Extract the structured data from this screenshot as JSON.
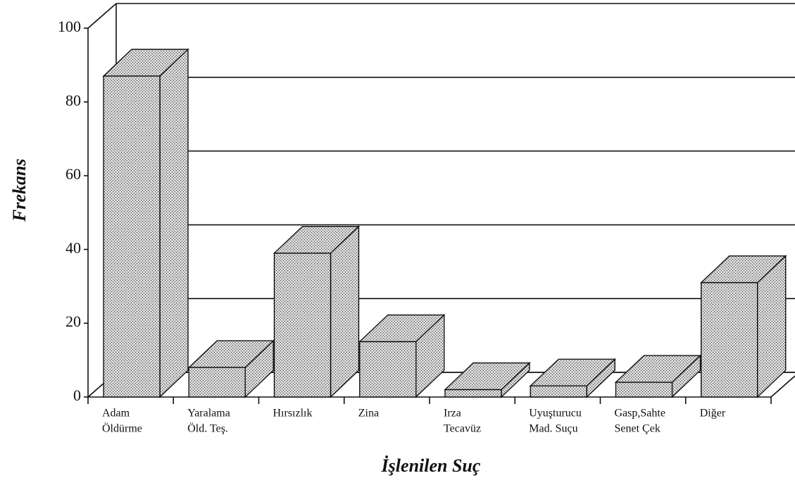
{
  "chart_data": {
    "type": "bar",
    "x_label": "İşlenilen Suç",
    "y_label": "Frekans",
    "categories": [
      [
        "Adam",
        "Öldürme"
      ],
      [
        "Yaralama",
        "Öld. Teş."
      ],
      [
        "Hırsızlık"
      ],
      [
        "Zina"
      ],
      [
        "Irza",
        "Tecavüz"
      ],
      [
        "Uyuşturucu",
        "Mad. Suçu"
      ],
      [
        "Gasp,Sahte",
        "Senet Çek"
      ],
      [
        "Diğer"
      ]
    ],
    "values": [
      87,
      8,
      39,
      15,
      2,
      3,
      4,
      31
    ],
    "color": "#b8b8b8",
    "ylim": [
      0,
      100
    ],
    "yticks": [
      0,
      20,
      40,
      60,
      80,
      100
    ],
    "grid": true
  }
}
